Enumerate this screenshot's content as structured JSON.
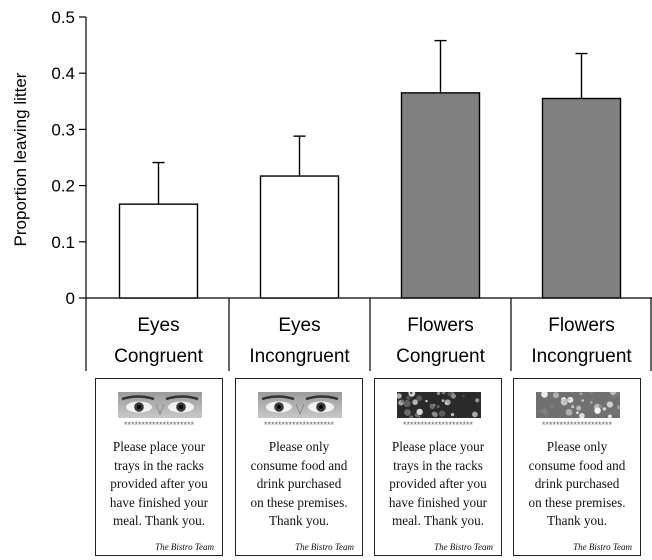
{
  "chart_data": {
    "type": "bar",
    "categories": [
      {
        "line1": "Eyes",
        "line2": "Congruent"
      },
      {
        "line1": "Eyes",
        "line2": "Incongruent"
      },
      {
        "line1": "Flowers",
        "line2": "Congruent"
      },
      {
        "line1": "Flowers",
        "line2": "Incongruent"
      }
    ],
    "values": [
      0.167,
      0.217,
      0.365,
      0.355
    ],
    "error_bars_upper": [
      0.241,
      0.288,
      0.458,
      0.435
    ],
    "bar_colors": [
      "#ffffff",
      "#ffffff",
      "#808080",
      "#808080"
    ],
    "ylabel": "Proportion leaving litter",
    "ylim": [
      0,
      0.5
    ],
    "yticks": [
      0,
      0.1,
      0.2,
      0.3,
      0.4,
      0.5
    ],
    "ytick_labels": [
      "0",
      "0.1",
      "0.2",
      "0.3",
      "0.4",
      "0.5"
    ],
    "grid": false
  },
  "cards": [
    {
      "image": "eyes-photo",
      "stars": "********************",
      "lines": [
        "Please place your",
        "trays in the racks",
        "provided after you",
        "have finished your",
        "meal. Thank you."
      ],
      "signature": "The Bistro Team"
    },
    {
      "image": "eyes-photo",
      "stars": "********************",
      "lines": [
        "Please only",
        "consume food and",
        "drink purchased",
        "on these premises.",
        "Thank you."
      ],
      "signature": "The Bistro Team"
    },
    {
      "image": "flowers-photo",
      "stars": "********************",
      "lines": [
        "Please place your",
        "trays in the racks",
        "provided after you",
        "have finished your",
        "meal. Thank you."
      ],
      "signature": "The Bistro Team"
    },
    {
      "image": "flowers-photo",
      "stars": "********************",
      "lines": [
        "Please only",
        "consume food and",
        "drink purchased",
        "on these premises.",
        "Thank you."
      ],
      "signature": "The Bistro Team"
    }
  ]
}
